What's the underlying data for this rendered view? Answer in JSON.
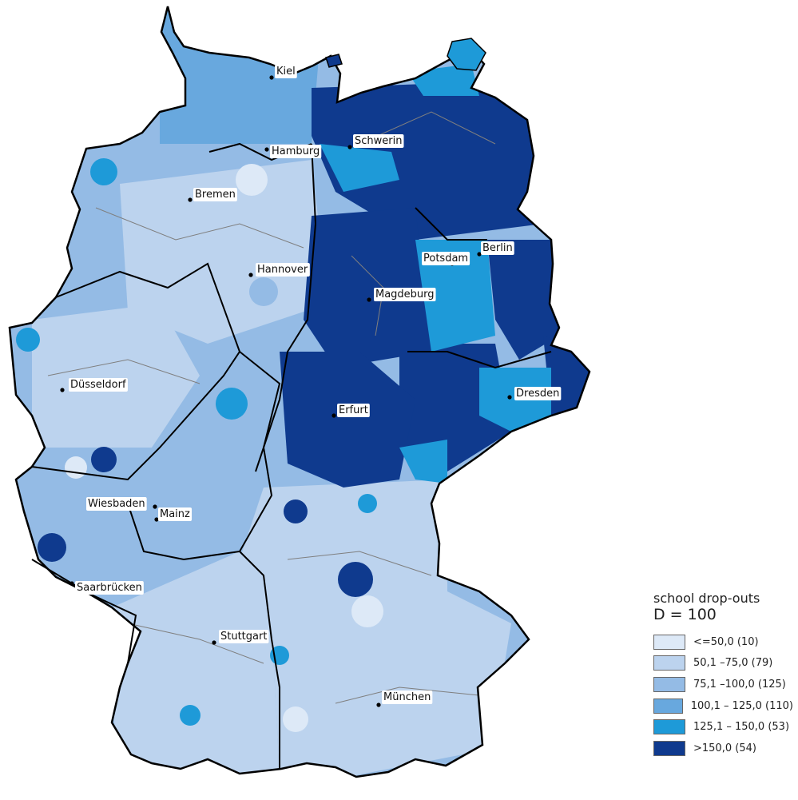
{
  "colors": {
    "c1": "#dde9f7",
    "c2": "#bcd3ee",
    "c3": "#94bbe5",
    "c4": "#68a8de",
    "c5": "#1e9ad8",
    "c6": "#0f3a8e",
    "outline": "#000000",
    "district_border": "#7f7f7f"
  },
  "legend": {
    "title": "school drop-outs",
    "subtitle": "D = 100",
    "classes": [
      {
        "label": "<=50,0 (10)",
        "color": "#dde9f7"
      },
      {
        "label": "50,1 –75,0 (79)",
        "color": "#bcd3ee"
      },
      {
        "label": "75,1 –100,0 (125)",
        "color": "#94bbe5"
      },
      {
        "label": "100,1 – 125,0 (110)",
        "color": "#68a8de"
      },
      {
        "label": "125,1 – 150,0 (53)",
        "color": "#1e9ad8"
      },
      {
        "label": ">150,0 (54)",
        "color": "#0f3a8e"
      }
    ]
  },
  "cities": [
    {
      "name": "Kiel"
    },
    {
      "name": "Hamburg"
    },
    {
      "name": "Schwerin"
    },
    {
      "name": "Bremen"
    },
    {
      "name": "Hannover"
    },
    {
      "name": "Potsdam"
    },
    {
      "name": "Berlin"
    },
    {
      "name": "Magdeburg"
    },
    {
      "name": "Düsseldorf"
    },
    {
      "name": "Erfurt"
    },
    {
      "name": "Dresden"
    },
    {
      "name": "Wiesbaden"
    },
    {
      "name": "Mainz"
    },
    {
      "name": "Saarbrücken"
    },
    {
      "name": "Stuttgart"
    },
    {
      "name": "München"
    }
  ]
}
